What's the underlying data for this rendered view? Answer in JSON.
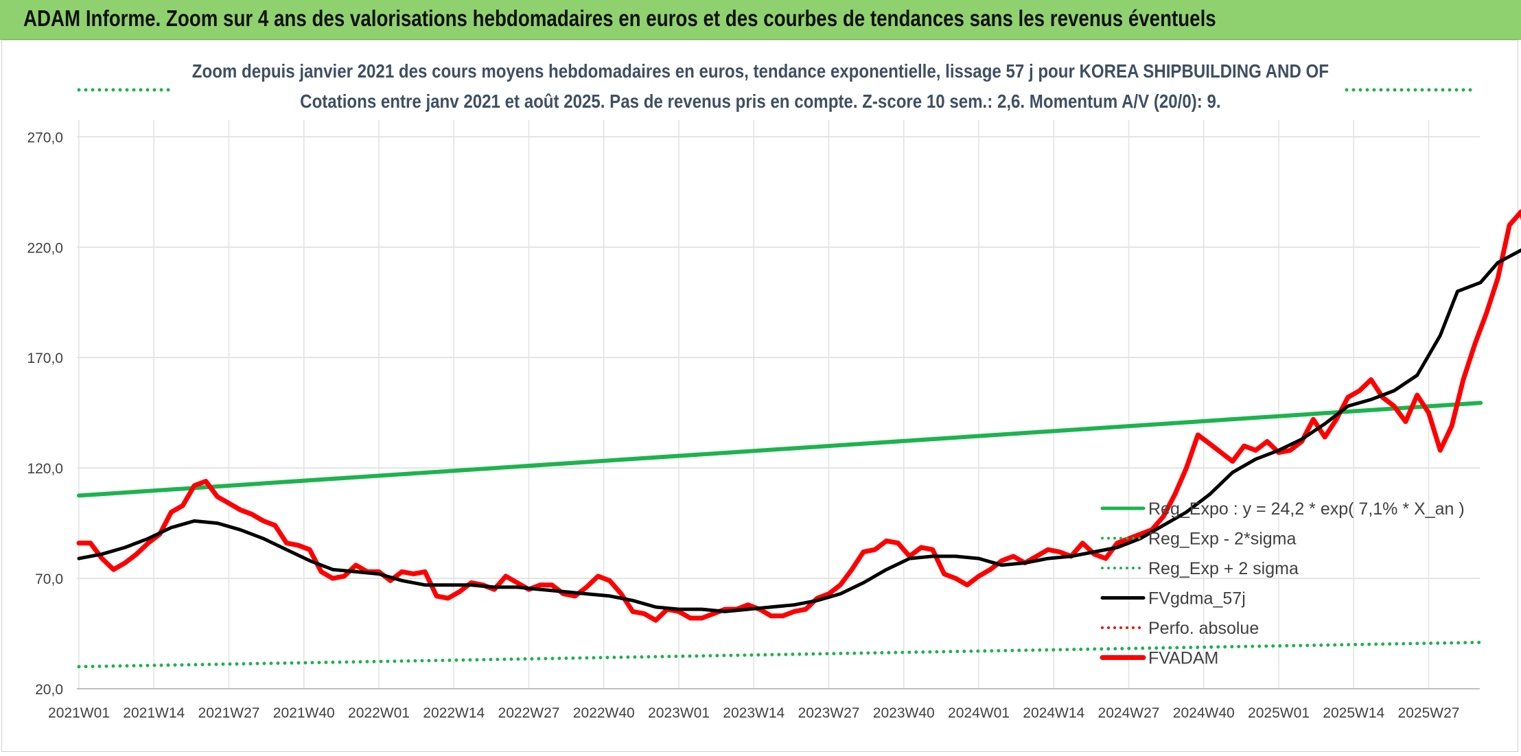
{
  "header": {
    "title": "ADAM Informe. Zoom sur 4 ans des valorisations hebdomadaires en euros et des courbes de tendances sans les revenus éventuels"
  },
  "chart_data": {
    "type": "line",
    "title": "Zoom depuis janvier 2021 des cours moyens hebdomadaires en euros, tendance exponentielle, lissage 57 j pour KOREA SHIPBUILDING AND OF",
    "subtitle": "Cotations entre janv 2021 et août 2025. Pas de revenus pris en compte. Z-score 10 sem.: 2,6. Momentum A/V (20/0): 9.",
    "xlabel": "",
    "ylabel": "",
    "ylim": [
      20,
      290
    ],
    "yticks": [
      "20,0",
      "70,0",
      "120,0",
      "170,0",
      "220,0",
      "270,0"
    ],
    "x_tick_labels": [
      "2021W01",
      "2021W14",
      "2021W27",
      "2021W40",
      "2022W01",
      "2022W14",
      "2022W27",
      "2022W40",
      "2023W01",
      "2023W14",
      "2023W27",
      "2023W40",
      "2024W01",
      "2024W14",
      "2024W27",
      "2024W40",
      "2025W01",
      "2025W14",
      "2025W27"
    ],
    "grid": true,
    "legend_placement": "bottom-right",
    "x_range_weeks": [
      1,
      244
    ],
    "series": [
      {
        "name": "Reg_Expo : y = 24,2 * exp( 7,1% *  X_an )",
        "color": "#1db34f",
        "style": "solid",
        "points": [
          [
            1,
            107.5
          ],
          [
            244,
            149.5
          ]
        ]
      },
      {
        "name": "Reg_Exp - 2*sigma",
        "color": "#1db34f",
        "style": "dotted",
        "points": [
          [
            1,
            30
          ],
          [
            244,
            41
          ]
        ]
      },
      {
        "name": "Reg_Exp + 2 sigma",
        "color": "#1db34f",
        "style": "dotted",
        "points": [
          [
            1,
            296
          ],
          [
            244,
            296
          ]
        ]
      },
      {
        "name": "FVgdma_57j",
        "color": "#000000",
        "style": "solid",
        "points": [
          [
            1,
            79
          ],
          [
            5,
            81
          ],
          [
            9,
            84
          ],
          [
            13,
            88
          ],
          [
            17,
            93
          ],
          [
            21,
            96
          ],
          [
            25,
            95
          ],
          [
            29,
            92
          ],
          [
            33,
            88
          ],
          [
            37,
            83
          ],
          [
            41,
            78
          ],
          [
            45,
            74
          ],
          [
            49,
            73
          ],
          [
            53,
            72
          ],
          [
            57,
            69
          ],
          [
            61,
            67
          ],
          [
            65,
            67
          ],
          [
            69,
            67
          ],
          [
            73,
            66
          ],
          [
            77,
            66
          ],
          [
            81,
            65
          ],
          [
            85,
            64
          ],
          [
            89,
            63
          ],
          [
            93,
            62
          ],
          [
            97,
            60
          ],
          [
            101,
            57
          ],
          [
            105,
            56
          ],
          [
            109,
            56
          ],
          [
            113,
            55
          ],
          [
            117,
            56
          ],
          [
            121,
            57
          ],
          [
            125,
            58
          ],
          [
            129,
            60
          ],
          [
            133,
            63
          ],
          [
            137,
            68
          ],
          [
            141,
            74
          ],
          [
            145,
            79
          ],
          [
            149,
            80
          ],
          [
            153,
            80
          ],
          [
            157,
            79
          ],
          [
            161,
            76
          ],
          [
            165,
            77
          ],
          [
            169,
            79
          ],
          [
            173,
            80
          ],
          [
            177,
            82
          ],
          [
            181,
            84
          ],
          [
            185,
            88
          ],
          [
            189,
            94
          ],
          [
            193,
            100
          ],
          [
            197,
            108
          ],
          [
            201,
            118
          ],
          [
            205,
            124
          ],
          [
            209,
            128
          ],
          [
            213,
            133
          ],
          [
            217,
            140
          ],
          [
            221,
            148
          ],
          [
            225,
            151
          ],
          [
            229,
            155
          ],
          [
            233,
            162
          ],
          [
            237,
            180
          ],
          [
            240,
            200
          ],
          [
            244,
            204
          ],
          [
            247,
            213
          ],
          [
            252,
            220
          ]
        ]
      },
      {
        "name": "Perfo. absolue",
        "color": "#ff0000",
        "style": "dotted",
        "points": []
      },
      {
        "name": "FVADAM",
        "color": "#ff0000",
        "style": "solid",
        "points": [
          [
            1,
            86
          ],
          [
            3,
            86
          ],
          [
            5,
            79
          ],
          [
            7,
            74
          ],
          [
            9,
            77
          ],
          [
            11,
            81
          ],
          [
            13,
            86
          ],
          [
            15,
            90
          ],
          [
            17,
            100
          ],
          [
            19,
            103
          ],
          [
            21,
            112
          ],
          [
            23,
            114
          ],
          [
            25,
            107
          ],
          [
            27,
            104
          ],
          [
            29,
            101
          ],
          [
            31,
            99
          ],
          [
            33,
            96
          ],
          [
            35,
            94
          ],
          [
            37,
            86
          ],
          [
            39,
            85
          ],
          [
            41,
            83
          ],
          [
            43,
            73
          ],
          [
            45,
            70
          ],
          [
            47,
            71
          ],
          [
            49,
            76
          ],
          [
            51,
            73
          ],
          [
            53,
            73
          ],
          [
            55,
            69
          ],
          [
            57,
            73
          ],
          [
            59,
            72
          ],
          [
            61,
            73
          ],
          [
            63,
            62
          ],
          [
            65,
            61
          ],
          [
            67,
            64
          ],
          [
            69,
            68
          ],
          [
            71,
            67
          ],
          [
            73,
            65
          ],
          [
            75,
            71
          ],
          [
            77,
            68
          ],
          [
            79,
            65
          ],
          [
            81,
            67
          ],
          [
            83,
            67
          ],
          [
            85,
            63
          ],
          [
            87,
            62
          ],
          [
            89,
            66
          ],
          [
            91,
            71
          ],
          [
            93,
            69
          ],
          [
            95,
            63
          ],
          [
            97,
            55
          ],
          [
            99,
            54
          ],
          [
            101,
            51
          ],
          [
            103,
            56
          ],
          [
            105,
            55
          ],
          [
            107,
            52
          ],
          [
            109,
            52
          ],
          [
            111,
            54
          ],
          [
            113,
            56
          ],
          [
            115,
            56
          ],
          [
            117,
            58
          ],
          [
            119,
            56
          ],
          [
            121,
            53
          ],
          [
            123,
            53
          ],
          [
            125,
            55
          ],
          [
            127,
            56
          ],
          [
            129,
            61
          ],
          [
            131,
            63
          ],
          [
            133,
            67
          ],
          [
            135,
            74
          ],
          [
            137,
            82
          ],
          [
            139,
            83
          ],
          [
            141,
            87
          ],
          [
            143,
            86
          ],
          [
            145,
            80
          ],
          [
            147,
            84
          ],
          [
            149,
            83
          ],
          [
            151,
            72
          ],
          [
            153,
            70
          ],
          [
            155,
            67
          ],
          [
            157,
            71
          ],
          [
            159,
            74
          ],
          [
            161,
            78
          ],
          [
            163,
            80
          ],
          [
            165,
            77
          ],
          [
            167,
            80
          ],
          [
            169,
            83
          ],
          [
            171,
            82
          ],
          [
            173,
            80
          ],
          [
            175,
            86
          ],
          [
            177,
            81
          ],
          [
            179,
            79
          ],
          [
            181,
            86
          ],
          [
            183,
            88
          ],
          [
            185,
            90
          ],
          [
            187,
            92
          ],
          [
            189,
            98
          ],
          [
            191,
            108
          ],
          [
            193,
            120
          ],
          [
            195,
            135
          ],
          [
            197,
            131
          ],
          [
            199,
            127
          ],
          [
            201,
            123
          ],
          [
            203,
            130
          ],
          [
            205,
            128
          ],
          [
            207,
            132
          ],
          [
            209,
            127
          ],
          [
            211,
            128
          ],
          [
            213,
            132
          ],
          [
            215,
            142
          ],
          [
            217,
            134
          ],
          [
            219,
            142
          ],
          [
            221,
            152
          ],
          [
            223,
            155
          ],
          [
            225,
            160
          ],
          [
            227,
            152
          ],
          [
            229,
            148
          ],
          [
            231,
            141
          ],
          [
            233,
            153
          ],
          [
            235,
            145
          ],
          [
            237,
            128
          ],
          [
            239,
            139
          ],
          [
            241,
            160
          ],
          [
            243,
            176
          ],
          [
            245,
            190
          ],
          [
            247,
            206
          ],
          [
            249,
            230
          ],
          [
            251,
            236
          ],
          [
            253,
            218
          ],
          [
            255,
            203
          ],
          [
            257,
            206
          ],
          [
            259,
            212
          ],
          [
            261,
            221
          ],
          [
            263,
            228
          ],
          [
            265,
            233
          ]
        ]
      }
    ]
  }
}
